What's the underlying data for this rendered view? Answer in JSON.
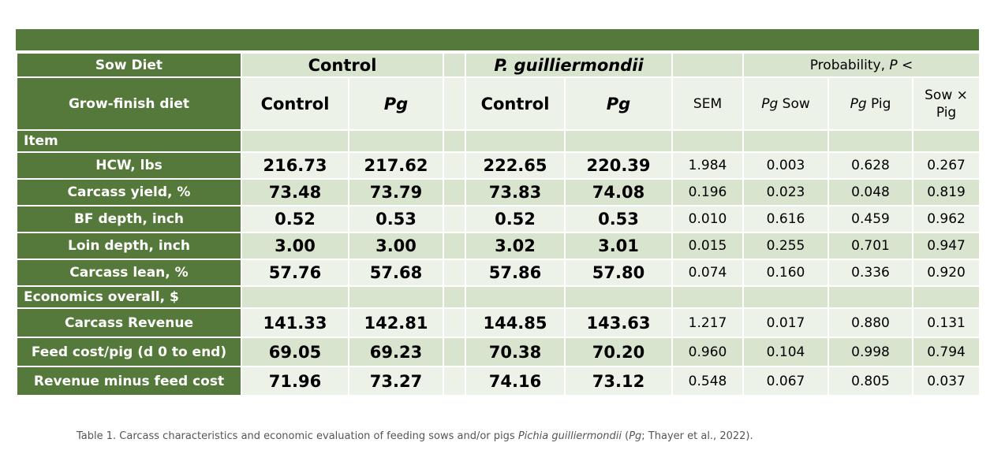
{
  "sow_diet": {
    "label": "Sow Diet",
    "groups": [
      {
        "segments": [
          {
            "text": "Control"
          }
        ]
      },
      {
        "segments": [
          {
            "text": "P. guilliermondii",
            "italic": true
          }
        ]
      }
    ],
    "probability": {
      "segments": [
        {
          "text": "Probability, "
        },
        {
          "text": "P",
          "italic": true
        },
        {
          "text": " <"
        }
      ]
    }
  },
  "grow_finish": {
    "label": "Grow-finish diet",
    "columns": [
      {
        "segments": [
          {
            "text": "Control"
          }
        ]
      },
      {
        "segments": [
          {
            "text": "Pg",
            "italic": true
          }
        ]
      },
      {
        "segments": [
          {
            "text": "Control"
          }
        ]
      },
      {
        "segments": [
          {
            "text": "Pg",
            "italic": true
          }
        ]
      },
      {
        "segments": [
          {
            "text": "SEM"
          }
        ]
      },
      {
        "segments": [
          {
            "text": "Pg",
            "italic": true
          },
          {
            "text": " Sow"
          }
        ]
      },
      {
        "segments": [
          {
            "text": "Pg",
            "italic": true
          },
          {
            "text": " Pig"
          }
        ]
      },
      {
        "segments": [
          {
            "text": "Sow × Pig"
          }
        ]
      }
    ]
  },
  "sections": [
    {
      "title": "Item",
      "rows": [
        {
          "label": "HCW, lbs",
          "values": [
            "216.73",
            "217.62",
            "222.65",
            "220.39",
            "1.984",
            "0.003",
            "0.628",
            "0.267"
          ]
        },
        {
          "label": "Carcass  yield, %",
          "values": [
            "73.48",
            "73.79",
            "73.83",
            "74.08",
            "0.196",
            "0.023",
            "0.048",
            "0.819"
          ]
        },
        {
          "label": "BF depth, inch",
          "values": [
            "0.52",
            "0.53",
            "0.52",
            "0.53",
            "0.010",
            "0.616",
            "0.459",
            "0.962"
          ]
        },
        {
          "label": "Loin depth, inch",
          "values": [
            "3.00",
            "3.00",
            "3.02",
            "3.01",
            "0.015",
            "0.255",
            "0.701",
            "0.947"
          ]
        },
        {
          "label": "Carcass lean, %",
          "values": [
            "57.76",
            "57.68",
            "57.86",
            "57.80",
            "0.074",
            "0.160",
            "0.336",
            "0.920"
          ]
        }
      ]
    },
    {
      "title": "Economics overall, $",
      "rows": [
        {
          "label": "Carcass  Revenue",
          "values": [
            "141.33",
            "142.81",
            "144.85",
            "143.63",
            "1.217",
            "0.017",
            "0.880",
            "0.131"
          ]
        },
        {
          "label": "Feed cost/pig (d 0 to end)",
          "values": [
            "69.05",
            "69.23",
            "70.38",
            "70.20",
            "0.960",
            "0.104",
            "0.998",
            "0.794"
          ]
        },
        {
          "label": "Revenue minus feed cost",
          "values": [
            "71.96",
            "73.27",
            "74.16",
            "73.12",
            "0.548",
            "0.067",
            "0.805",
            "0.037"
          ]
        }
      ]
    }
  ],
  "caption": {
    "segments": [
      {
        "text": "Table 1. Carcass characteristics and economic evaluation of feeding sows and/or pigs "
      },
      {
        "text": "Pichia guilliermondii",
        "italic": true
      },
      {
        "text": " ("
      },
      {
        "text": "Pg",
        "italic": true
      },
      {
        "text": "; Thayer et al., 2022)."
      }
    ]
  }
}
